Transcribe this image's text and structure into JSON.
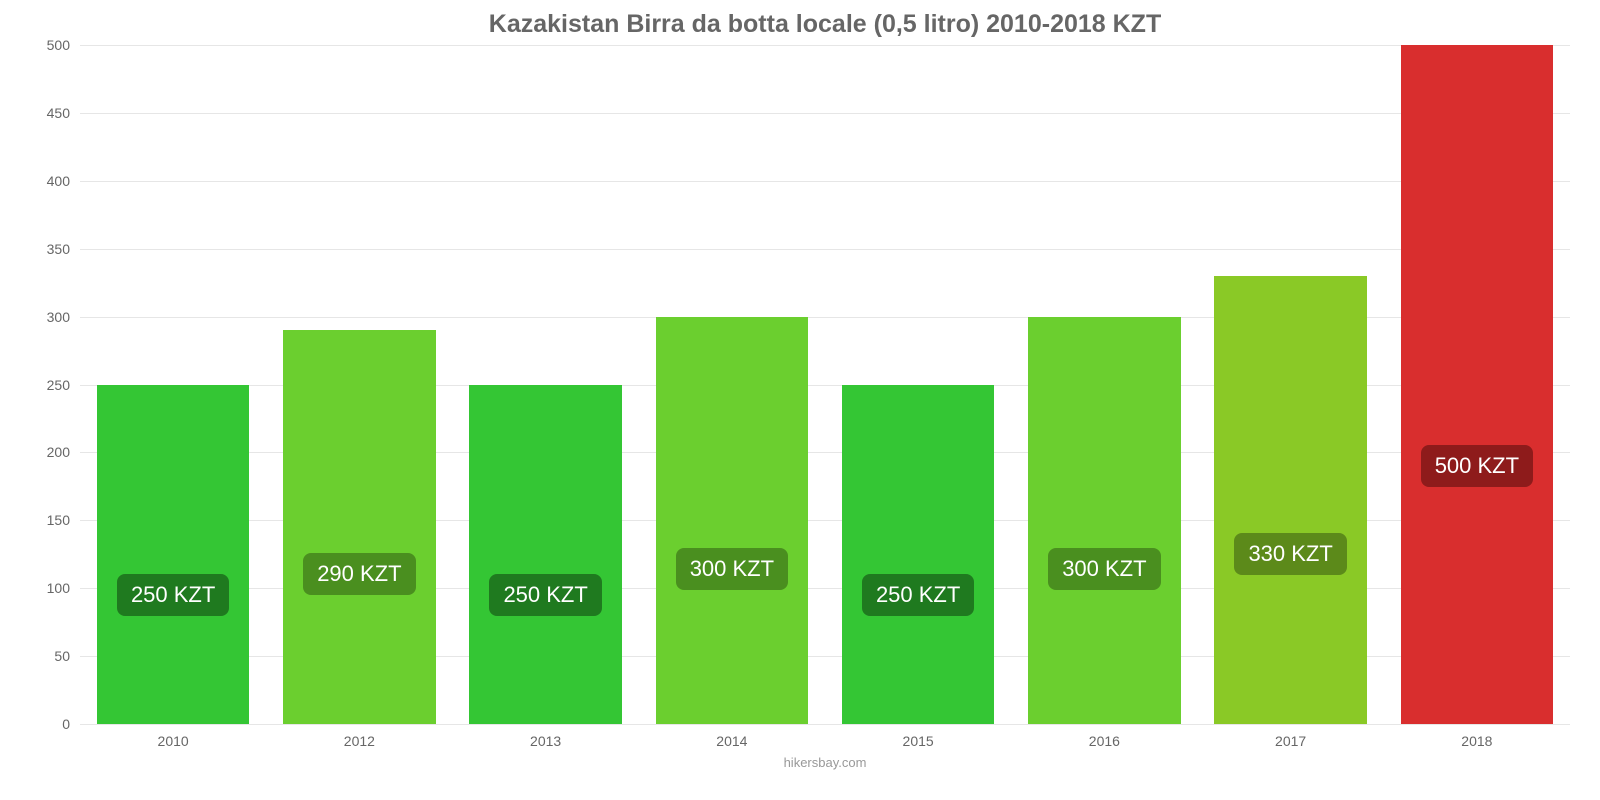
{
  "chart": {
    "type": "bar",
    "title": "Kazakistan Birra da botta locale (0,5 litro) 2010-2018 KZT",
    "title_fontsize": 25,
    "title_color": "#666666",
    "background_color": "#ffffff",
    "grid_color": "#e6e6e6",
    "axis_color": "#cccccc",
    "ylim": [
      0,
      500
    ],
    "ytick_step": 50,
    "yticks": [
      "0",
      "50",
      "100",
      "150",
      "200",
      "250",
      "300",
      "350",
      "400",
      "450",
      "500"
    ],
    "tick_fontsize": 14,
    "tick_color": "#666666",
    "categories": [
      "2010",
      "2012",
      "2013",
      "2014",
      "2015",
      "2016",
      "2017",
      "2018"
    ],
    "values": [
      250,
      290,
      250,
      300,
      250,
      300,
      330,
      500
    ],
    "bar_colors": [
      "#34c634",
      "#6bcf2f",
      "#34c634",
      "#6bcf2f",
      "#34c634",
      "#6bcf2f",
      "#8ac926",
      "#d92e2e"
    ],
    "value_labels": [
      "250 KZT",
      "290 KZT",
      "250 KZT",
      "300 KZT",
      "250 KZT",
      "300 KZT",
      "330 KZT",
      "500 KZT"
    ],
    "label_bg_colors": [
      "#1f7a1f",
      "#4a8f1f",
      "#1f7a1f",
      "#4a8f1f",
      "#1f7a1f",
      "#4a8f1f",
      "#5c8a1a",
      "#8e1b1b"
    ],
    "label_fontsize": 22,
    "label_text_color": "#ffffff",
    "bar_width": 0.82,
    "xlabel_fontsize": 14,
    "xlabel_color": "#666666",
    "credit": "hikersbay.com",
    "credit_fontsize": 13,
    "credit_color": "#999999",
    "label_y_ratio": 0.62
  }
}
